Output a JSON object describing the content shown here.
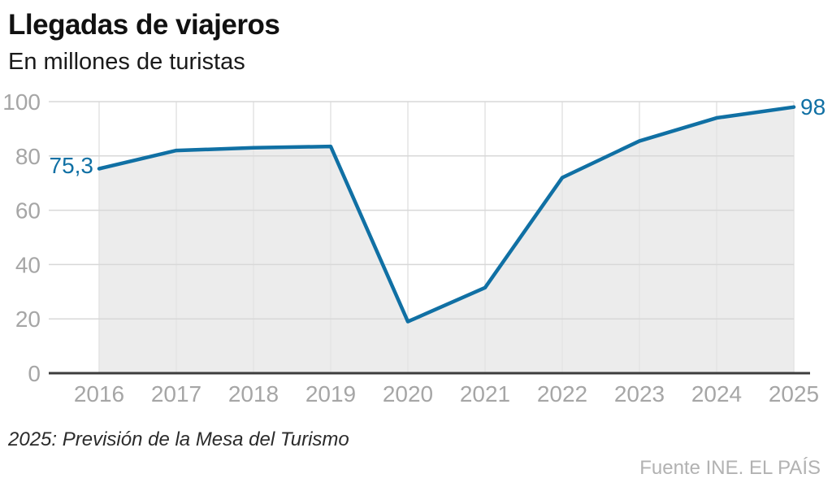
{
  "header": {
    "title": "Llegadas de viajeros",
    "subtitle": "En millones de turistas"
  },
  "chart_data": {
    "type": "area",
    "title": "Llegadas de viajeros",
    "subtitle": "En millones de turistas",
    "categories": [
      "2016",
      "2017",
      "2018",
      "2019",
      "2020",
      "2021",
      "2022",
      "2023",
      "2024",
      "2025"
    ],
    "values": [
      75.3,
      82,
      83,
      83.5,
      19,
      31.5,
      72,
      85.5,
      94,
      98
    ],
    "xlabel": "",
    "ylabel": "En millones de turistas",
    "ylim": [
      0,
      100
    ],
    "yticks": [
      0,
      20,
      40,
      60,
      80,
      100
    ],
    "grid": true,
    "legend": false,
    "point_labels": {
      "first": "75,3",
      "last": "98"
    },
    "colors": {
      "line": "#1070a4",
      "area_fill": "#ececec",
      "h_gridline": "#d8d8d8",
      "v_gridline": "#e4e4e4",
      "axis_line": "#3d3d3d",
      "tick_label": "#a6a6a6",
      "data_label": "#1070a4"
    }
  },
  "footer": {
    "note": "2025: Previsión de la Mesa del Turismo",
    "source": "Fuente INE. EL PAÍS"
  }
}
